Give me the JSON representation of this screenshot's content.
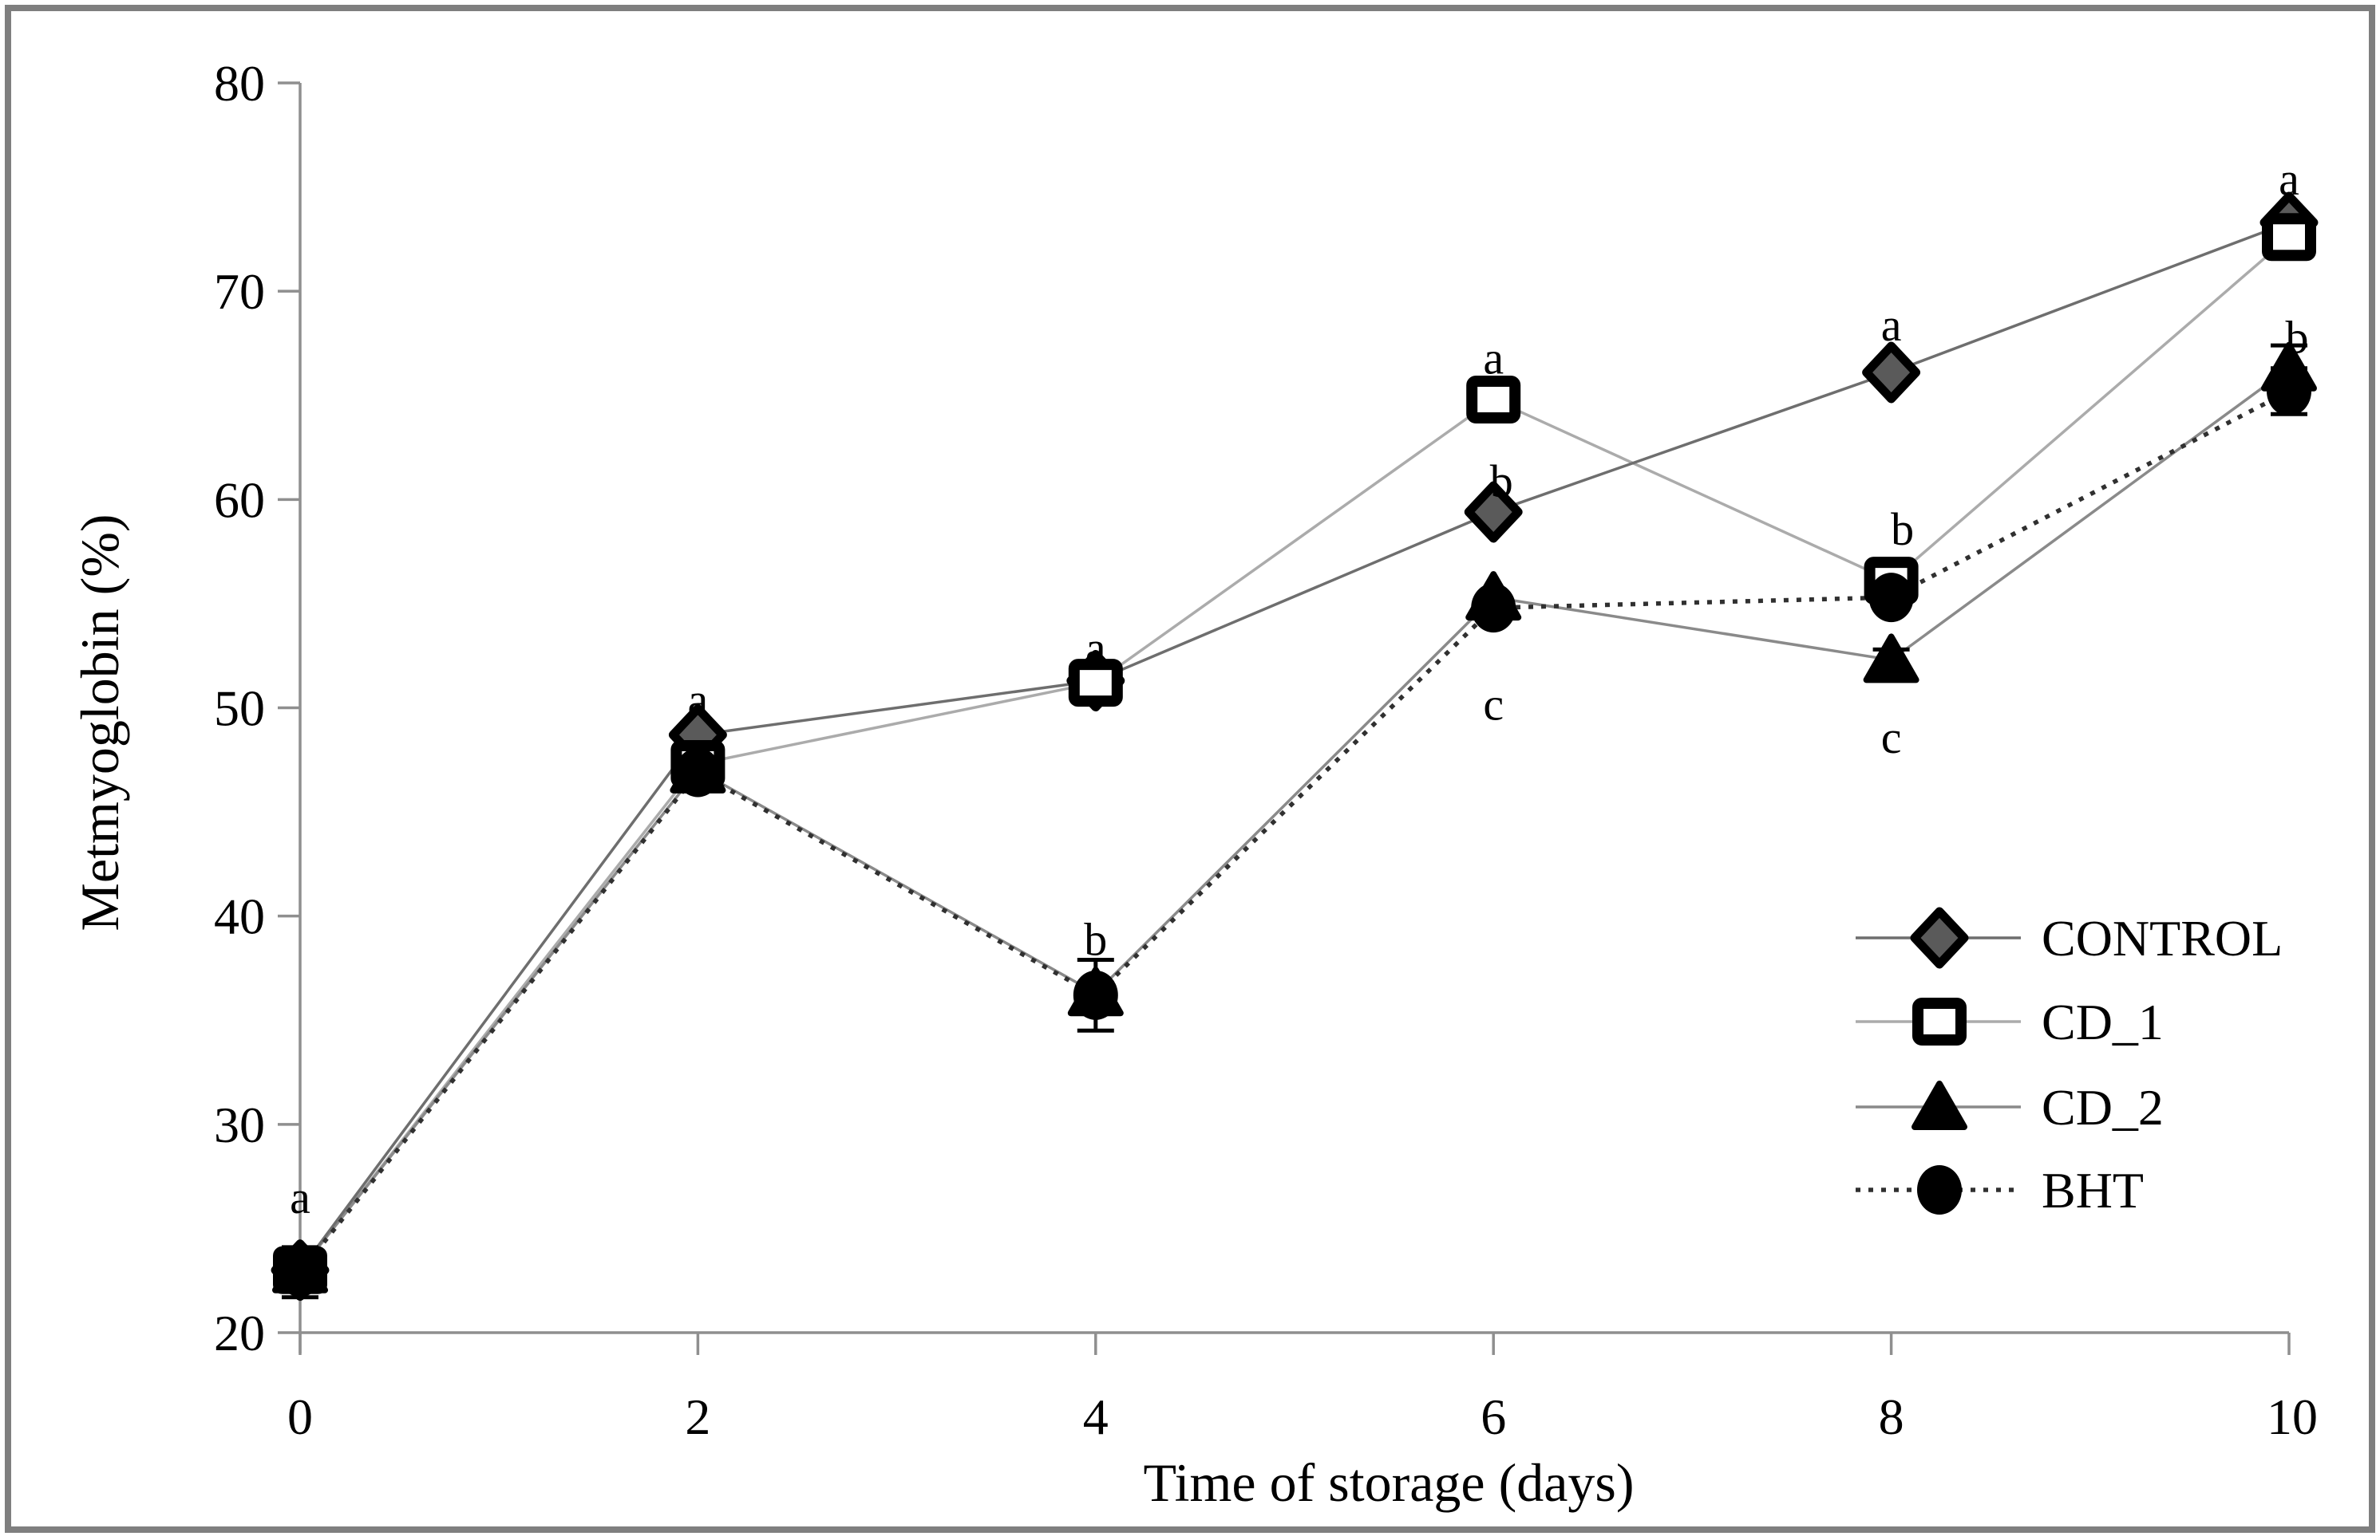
{
  "chart_data": {
    "type": "line",
    "title": "",
    "xlabel": "Time of storage (days)",
    "ylabel": "Metmyoglobin (%)",
    "x": [
      0,
      2,
      4,
      6,
      8,
      10
    ],
    "xticks": [
      "0",
      "2",
      "4",
      "6",
      "8",
      "10"
    ],
    "yticks": [
      "20",
      "30",
      "40",
      "50",
      "60",
      "70",
      "80"
    ],
    "xlim": [
      0,
      10
    ],
    "ylim": [
      20,
      80
    ],
    "grid": false,
    "legend_position": "middle-right",
    "series": [
      {
        "name": "CONTROL",
        "marker": "diamond",
        "marker_fill": "#5a5a5a",
        "marker_stroke": "#000000",
        "line_style": "solid",
        "line_color": "#6e6e6e",
        "values": [
          23.0,
          48.7,
          51.3,
          59.4,
          66.1,
          73.3
        ]
      },
      {
        "name": "CD_1",
        "marker": "open-square",
        "marker_fill": "#ffffff",
        "marker_stroke": "#000000",
        "line_style": "solid",
        "line_color": "#ababab",
        "values": [
          23.0,
          47.3,
          51.2,
          64.8,
          56.1,
          72.6
        ]
      },
      {
        "name": "CD_2",
        "marker": "triangle",
        "marker_fill": "#000000",
        "marker_stroke": "#000000",
        "line_style": "solid",
        "line_color": "#8a8a8a",
        "values": [
          23.0,
          47.0,
          36.3,
          55.3,
          52.3,
          66.3
        ]
      },
      {
        "name": "BHT",
        "marker": "circle",
        "marker_fill": "#000000",
        "marker_stroke": "#000000",
        "line_style": "dotted",
        "line_color": "#303030",
        "values": [
          22.9,
          46.9,
          36.2,
          54.8,
          55.3,
          65.2
        ]
      }
    ],
    "error_bars": [
      {
        "series": "BHT",
        "x": 0,
        "value": 22.9,
        "err": 1.2
      },
      {
        "series": "BHT",
        "x": 4,
        "value": 36.2,
        "err": 1.7
      },
      {
        "series": "CD_2",
        "x": 8,
        "value": 52.3,
        "err": 0.5
      },
      {
        "series": "CD_2",
        "x": 10,
        "value": 66.3,
        "err": 1.1
      },
      {
        "series": "BHT",
        "x": 10,
        "value": 65.2,
        "err": 1.1
      }
    ],
    "annotations": [
      {
        "x": 0,
        "y": 26.5,
        "text": "a",
        "dx": 0
      },
      {
        "x": 2,
        "y": 50.4,
        "text": "a",
        "dx": 0
      },
      {
        "x": 4,
        "y": 52.9,
        "text": "a",
        "dx": 0
      },
      {
        "x": 4,
        "y": 38.9,
        "text": "b",
        "dx": 0
      },
      {
        "x": 6,
        "y": 66.8,
        "text": "a",
        "dx": 0
      },
      {
        "x": 6,
        "y": 60.9,
        "text": "b",
        "dx": 10
      },
      {
        "x": 6,
        "y": 50.2,
        "text": "c",
        "dx": 0
      },
      {
        "x": 8,
        "y": 68.4,
        "text": "a",
        "dx": 0
      },
      {
        "x": 8,
        "y": 58.6,
        "text": "b",
        "dx": 14
      },
      {
        "x": 8,
        "y": 48.6,
        "text": "c",
        "dx": 0
      },
      {
        "x": 10,
        "y": 75.4,
        "text": "a",
        "dx": 0
      },
      {
        "x": 10,
        "y": 67.8,
        "text": "b",
        "dx": 10
      }
    ],
    "colors": {
      "axis": "#8f8f8f",
      "text": "#000000",
      "border": "#7f7f7f",
      "background": "#ffffff"
    }
  }
}
